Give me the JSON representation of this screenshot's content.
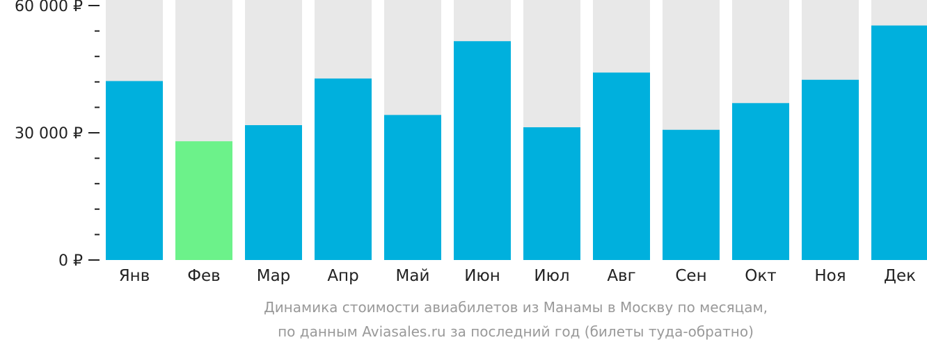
{
  "chart_data": {
    "type": "bar",
    "categories": [
      "Янв",
      "Фев",
      "Мар",
      "Апр",
      "Май",
      "Июн",
      "Июл",
      "Авг",
      "Сен",
      "Окт",
      "Ноя",
      "Дек"
    ],
    "values": [
      42200,
      28000,
      31800,
      42800,
      34200,
      51600,
      31300,
      44200,
      30700,
      37000,
      42500,
      55300
    ],
    "highlight_index": 1,
    "ylim": [
      0,
      60000
    ],
    "major_ticks": [
      0,
      30000,
      60000
    ],
    "major_tick_labels": [
      "0 ₽",
      "30 000 ₽",
      "60 000 ₽"
    ],
    "minor_tick_step": 6000,
    "xlabel": "",
    "ylabel": "",
    "colors": {
      "bar": "#00b0dd",
      "highlight": "#6cf28a",
      "background_bar": "#e8e8e8",
      "axis": "#222222",
      "caption": "#999999"
    }
  },
  "caption": {
    "line1": "Динамика стоимости авиабилетов из Манамы в Москву по месяцам,",
    "line2": "по данным Aviasales.ru за последний год (билеты туда-обратно)"
  }
}
